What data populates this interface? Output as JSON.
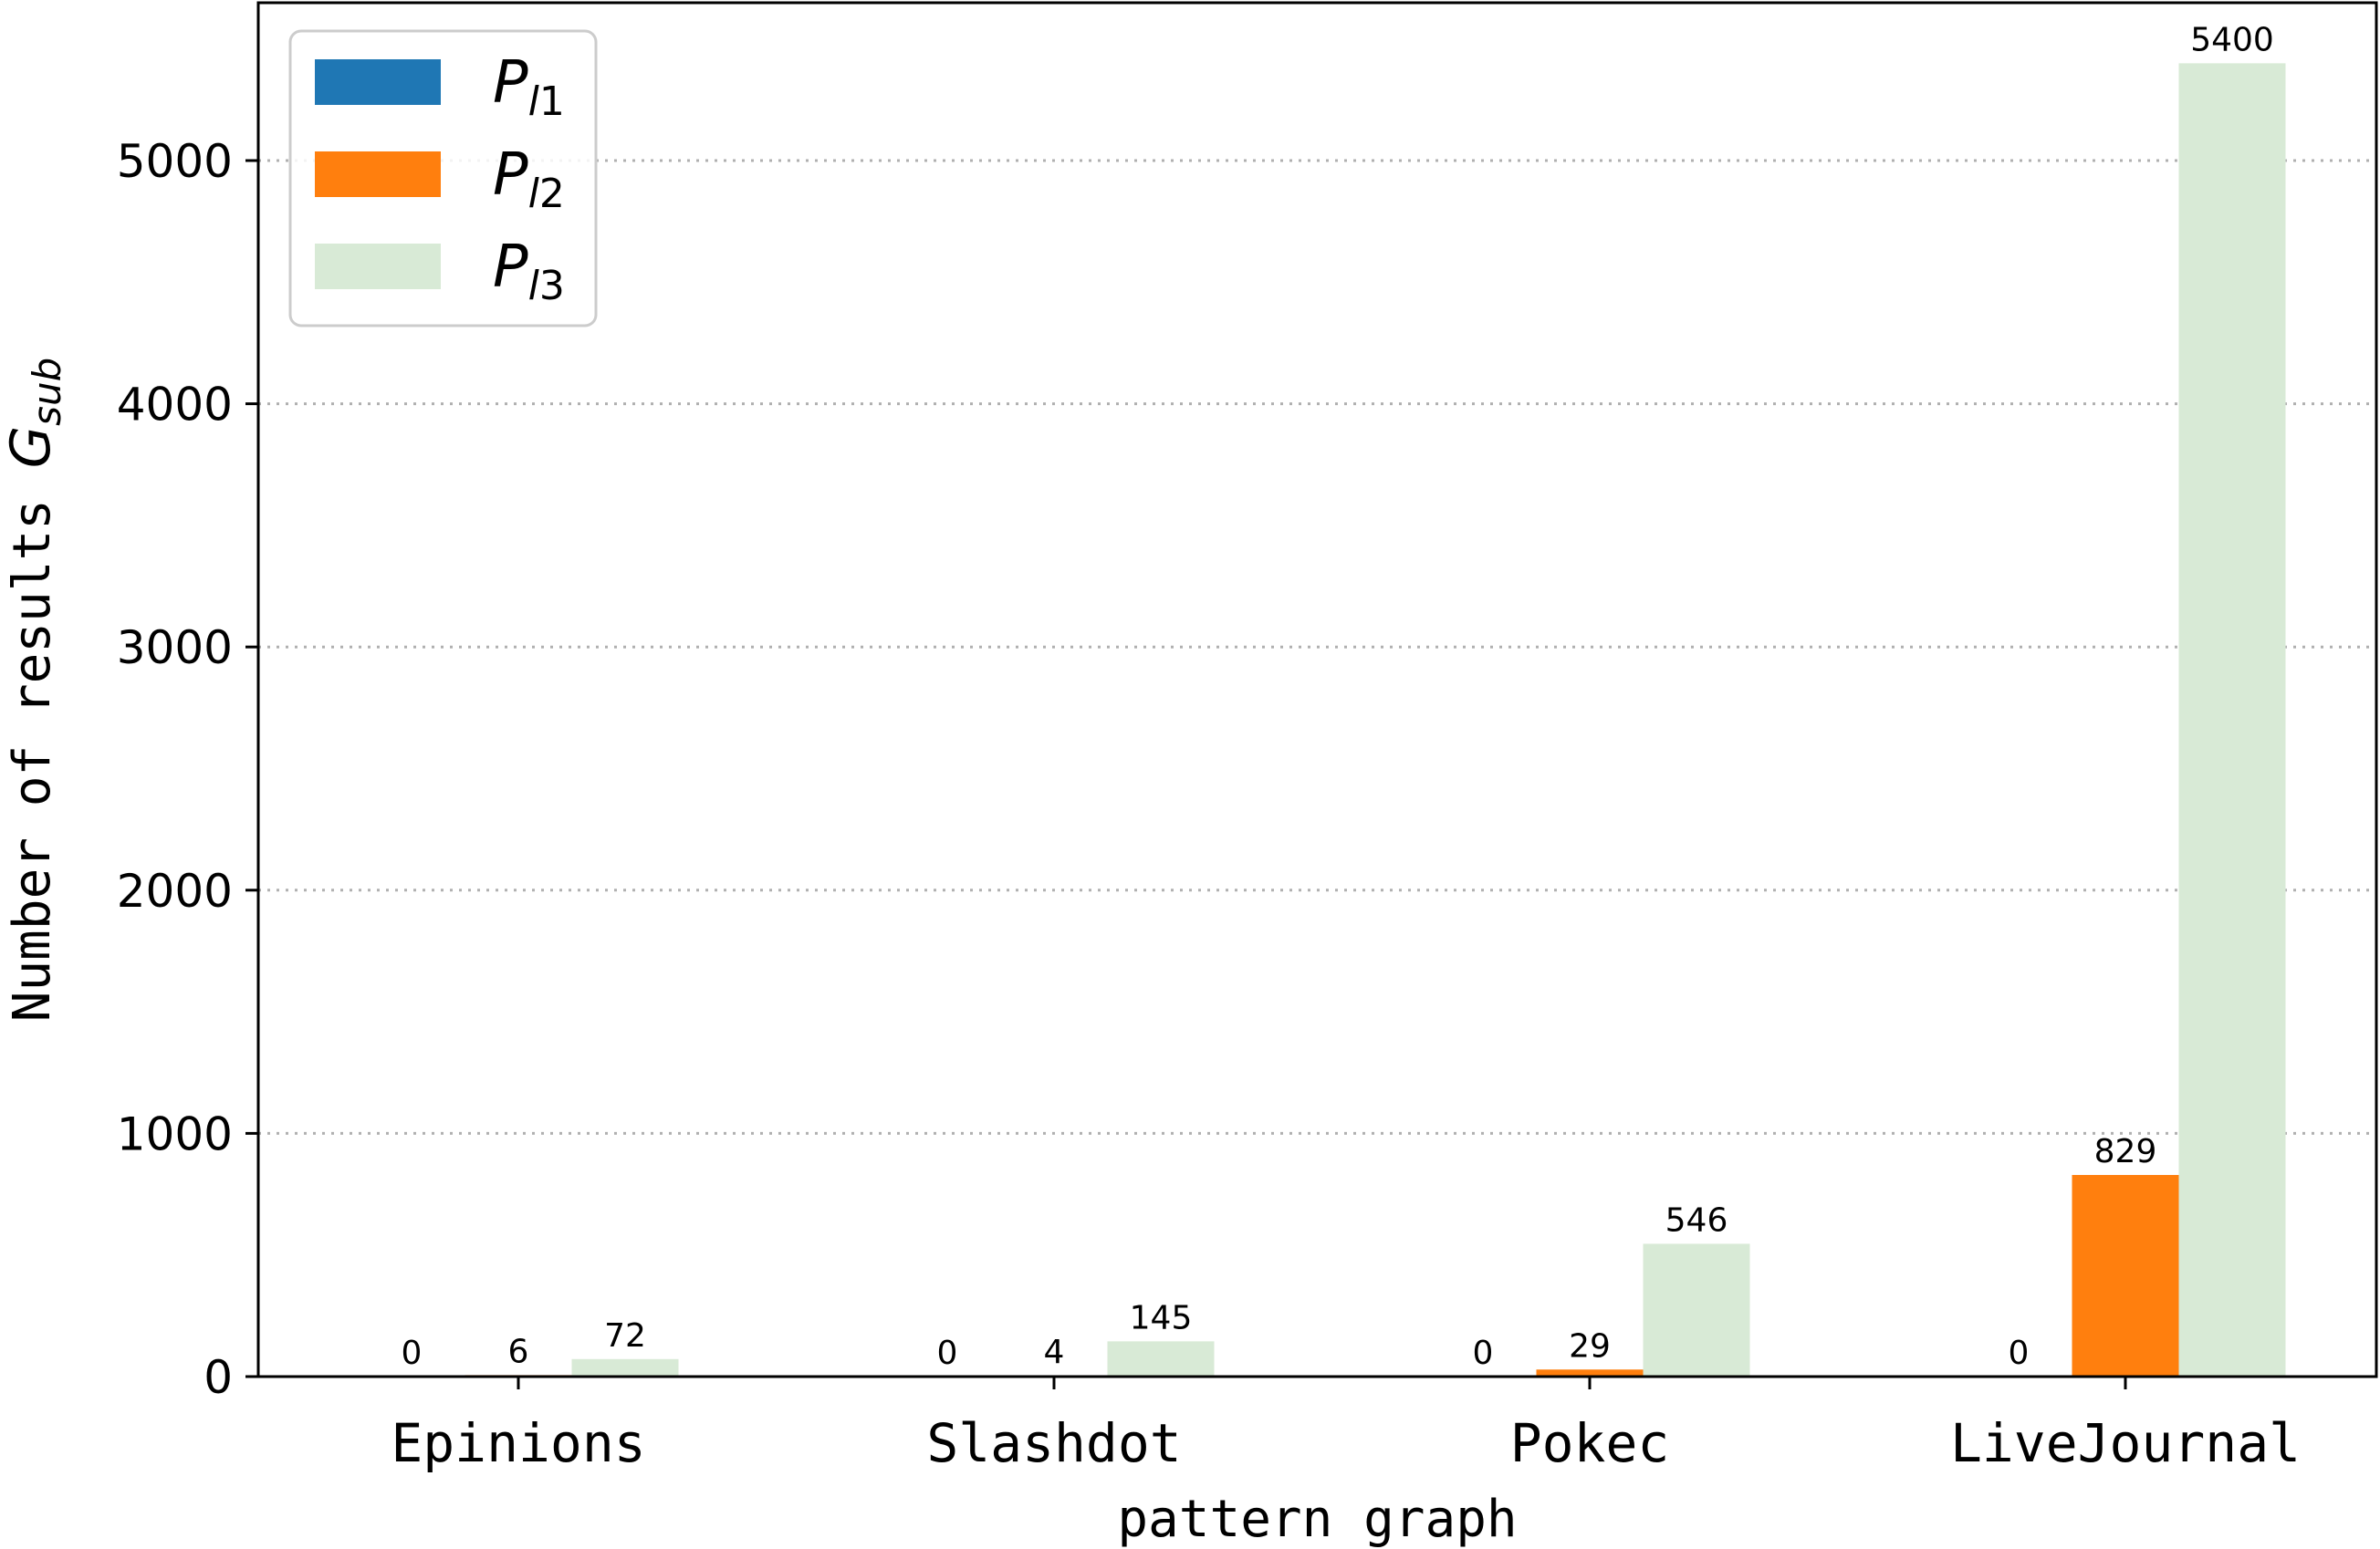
{
  "chart_data": {
    "type": "bar",
    "categories": [
      "Epinions",
      "Slashdot",
      "Pokec",
      "LiveJournal"
    ],
    "series": [
      {
        "name": "P_l1",
        "label_main": "P",
        "label_sub_i": "l",
        "label_sub_n": "1",
        "color": "#1f77b4",
        "values": [
          0,
          0,
          0,
          0
        ]
      },
      {
        "name": "P_l2",
        "label_main": "P",
        "label_sub_i": "l",
        "label_sub_n": "2",
        "color": "#ff7f0e",
        "values": [
          6,
          4,
          29,
          829
        ]
      },
      {
        "name": "P_l3",
        "label_main": "P",
        "label_sub_i": "l",
        "label_sub_n": "3",
        "color": "#d8ead6",
        "values": [
          72,
          145,
          546,
          5400
        ]
      }
    ],
    "xlabel": "pattern graph",
    "ylabel_text": "Number of results ",
    "ylabel_math_main": "G",
    "ylabel_math_sub": "sub",
    "ylim": [
      0,
      5500
    ],
    "yticks": [
      0,
      1000,
      2000,
      3000,
      4000,
      5000
    ],
    "grid": "y-dotted",
    "legend_position": "top-left"
  }
}
